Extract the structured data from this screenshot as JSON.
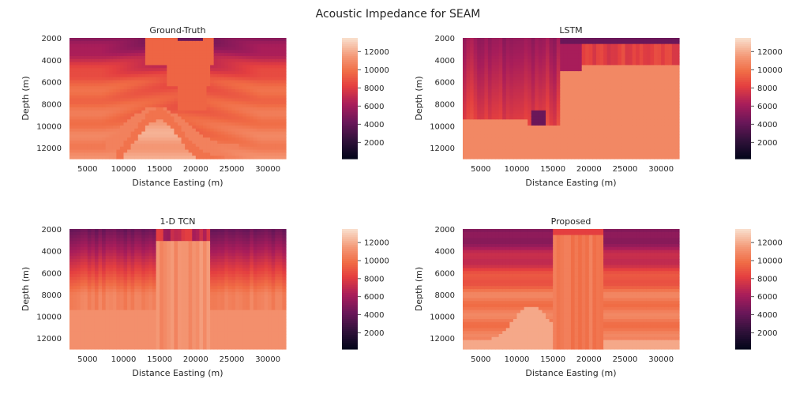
{
  "figure": {
    "title": "Acoustic Impedance for SEAM"
  },
  "chart_data": [
    {
      "type": "heatmap",
      "title": "Ground-Truth",
      "xlabel": "Distance Easting (m)",
      "ylabel": "Depth (m)",
      "xlim": [
        2500,
        32500
      ],
      "ylim": [
        13000,
        2000
      ],
      "xticks": [
        5000,
        10000,
        15000,
        20000,
        25000,
        30000
      ],
      "xtick_labels": [
        "5000",
        "10000",
        "15000",
        "20000",
        "25000",
        "30000"
      ],
      "yticks": [
        2000,
        4000,
        6000,
        8000,
        10000,
        12000
      ],
      "ytick_labels": [
        "2000",
        "4000",
        "6000",
        "8000",
        "10000",
        "12000"
      ],
      "colorbar": {
        "range": [
          200,
          13500
        ],
        "ticks": [
          2000,
          4000,
          6000,
          8000,
          10000,
          12000
        ],
        "tick_labels": [
          "2000",
          "4000",
          "6000",
          "8000",
          "10000",
          "12000"
        ],
        "colormap": "rocket"
      },
      "pattern": "ground_truth"
    },
    {
      "type": "heatmap",
      "title": "LSTM",
      "xlabel": "Distance Easting (m)",
      "ylabel": "Depth (m)",
      "xlim": [
        2500,
        32500
      ],
      "ylim": [
        13000,
        2000
      ],
      "xticks": [
        5000,
        10000,
        15000,
        20000,
        25000,
        30000
      ],
      "xtick_labels": [
        "5000",
        "10000",
        "15000",
        "20000",
        "25000",
        "30000"
      ],
      "yticks": [
        2000,
        4000,
        6000,
        8000,
        10000,
        12000
      ],
      "ytick_labels": [
        "2000",
        "4000",
        "6000",
        "8000",
        "10000",
        "12000"
      ],
      "colorbar": {
        "range": [
          200,
          13500
        ],
        "ticks": [
          2000,
          4000,
          6000,
          8000,
          10000,
          12000
        ],
        "tick_labels": [
          "2000",
          "4000",
          "6000",
          "8000",
          "10000",
          "12000"
        ],
        "colormap": "rocket"
      },
      "pattern": "lstm"
    },
    {
      "type": "heatmap",
      "title": "1-D TCN",
      "xlabel": "Distance Easting (m)",
      "ylabel": "Depth (m)",
      "xlim": [
        2500,
        32500
      ],
      "ylim": [
        13000,
        2000
      ],
      "xticks": [
        5000,
        10000,
        15000,
        20000,
        25000,
        30000
      ],
      "xtick_labels": [
        "5000",
        "10000",
        "15000",
        "20000",
        "25000",
        "30000"
      ],
      "yticks": [
        2000,
        4000,
        6000,
        8000,
        10000,
        12000
      ],
      "ytick_labels": [
        "2000",
        "4000",
        "6000",
        "8000",
        "10000",
        "12000"
      ],
      "colorbar": {
        "range": [
          200,
          13500
        ],
        "ticks": [
          2000,
          4000,
          6000,
          8000,
          10000,
          12000
        ],
        "tick_labels": [
          "2000",
          "4000",
          "6000",
          "8000",
          "10000",
          "12000"
        ],
        "colormap": "rocket"
      },
      "pattern": "tcn"
    },
    {
      "type": "heatmap",
      "title": "Proposed",
      "xlabel": "Distance Easting (m)",
      "ylabel": "Depth (m)",
      "xlim": [
        2500,
        32500
      ],
      "ylim": [
        13000,
        2000
      ],
      "xticks": [
        5000,
        10000,
        15000,
        20000,
        25000,
        30000
      ],
      "xtick_labels": [
        "5000",
        "10000",
        "15000",
        "20000",
        "25000",
        "30000"
      ],
      "yticks": [
        2000,
        4000,
        6000,
        8000,
        10000,
        12000
      ],
      "ytick_labels": [
        "2000",
        "4000",
        "6000",
        "8000",
        "10000",
        "12000"
      ],
      "colorbar": {
        "range": [
          200,
          13500
        ],
        "ticks": [
          2000,
          4000,
          6000,
          8000,
          10000,
          12000
        ],
        "tick_labels": [
          "2000",
          "4000",
          "6000",
          "8000",
          "10000",
          "12000"
        ],
        "colormap": "rocket"
      },
      "pattern": "proposed"
    }
  ]
}
